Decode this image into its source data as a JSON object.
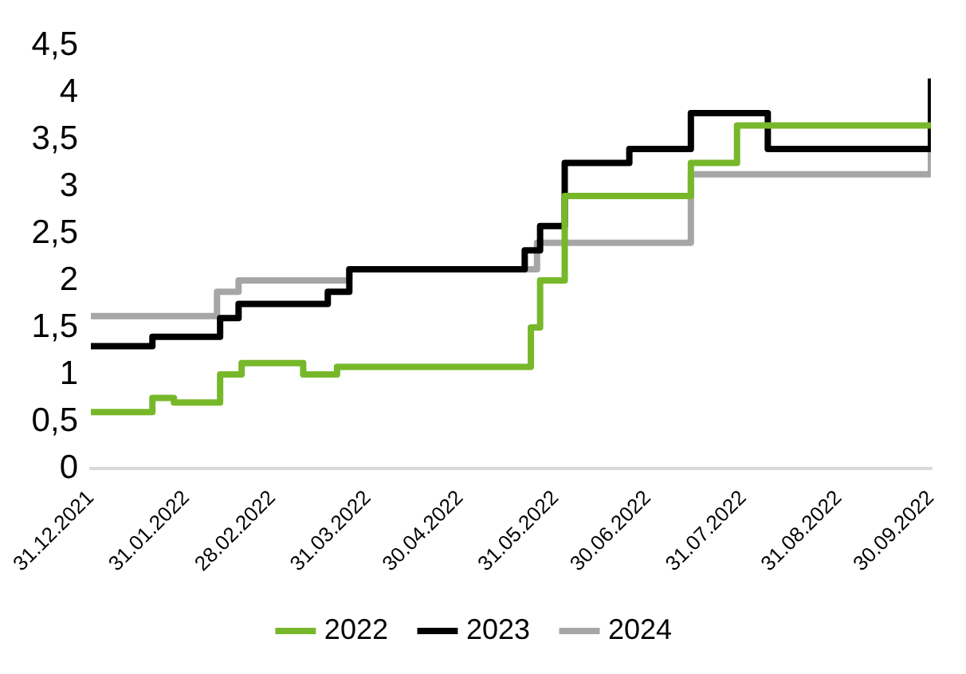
{
  "chart_data": {
    "type": "step",
    "xlim": [
      "2021-12-31",
      "2022-09-30"
    ],
    "xticks": [
      {
        "value": "2021-12-31",
        "label": "31.12.2021"
      },
      {
        "value": "2022-01-31",
        "label": "31.01.2022"
      },
      {
        "value": "2022-02-28",
        "label": "28.02.2022"
      },
      {
        "value": "2022-03-31",
        "label": "31.03.2022"
      },
      {
        "value": "2022-04-30",
        "label": "30.04.2022"
      },
      {
        "value": "2022-05-31",
        "label": "31.05.2022"
      },
      {
        "value": "2022-06-30",
        "label": "30.06.2022"
      },
      {
        "value": "2022-07-31",
        "label": "31.07.2022"
      },
      {
        "value": "2022-08-31",
        "label": "31.08.2022"
      },
      {
        "value": "2022-09-30",
        "label": "30.09.2022"
      }
    ],
    "ylim": [
      0,
      4.5
    ],
    "yticks": [
      0,
      {
        "value": 0.5,
        "label": "0,5"
      },
      1,
      {
        "value": 1.5,
        "label": "1,5"
      },
      2,
      {
        "value": 2.5,
        "label": "2,5"
      },
      3,
      {
        "value": 3.5,
        "label": "3,5"
      },
      4,
      {
        "value": 4.5,
        "label": "4,5"
      }
    ],
    "grid": false,
    "legend": "bottom",
    "marker": "none",
    "line_style": "solid",
    "series": [
      {
        "name": "2022",
        "color": "#77b82a",
        "x": [
          "2021-12-31",
          "2022-01-20",
          "2022-01-27",
          "2022-02-11",
          "2022-02-18",
          "2022-03-10",
          "2022-03-21",
          "2022-05-23",
          "2022-05-26",
          "2022-06-03",
          "2022-07-14",
          "2022-07-29",
          "2022-09-30"
        ],
        "values": [
          0.6,
          0.75,
          0.7,
          1.0,
          1.12,
          1.0,
          1.08,
          1.5,
          2.0,
          2.9,
          3.25,
          3.65,
          3.65
        ]
      },
      {
        "name": "2023",
        "color": "#000000",
        "x": [
          "2021-12-31",
          "2022-01-20",
          "2022-02-11",
          "2022-02-17",
          "2022-03-18",
          "2022-03-25",
          "2022-05-21",
          "2022-05-26",
          "2022-06-03",
          "2022-06-24",
          "2022-07-14",
          "2022-08-08",
          "2022-09-29",
          "2022-09-30"
        ],
        "values": [
          1.3,
          1.4,
          1.6,
          1.75,
          1.88,
          2.12,
          2.32,
          2.58,
          3.25,
          3.4,
          3.78,
          3.4,
          3.4,
          4.15
        ]
      },
      {
        "name": "2024",
        "color": "#a6a6a6",
        "x": [
          "2021-12-31",
          "2022-02-10",
          "2022-02-17",
          "2022-03-25",
          "2022-05-25",
          "2022-07-14",
          "2022-09-29",
          "2022-09-30"
        ],
        "values": [
          1.62,
          1.88,
          2.0,
          2.12,
          2.4,
          3.13,
          3.13,
          3.38
        ]
      }
    ]
  }
}
